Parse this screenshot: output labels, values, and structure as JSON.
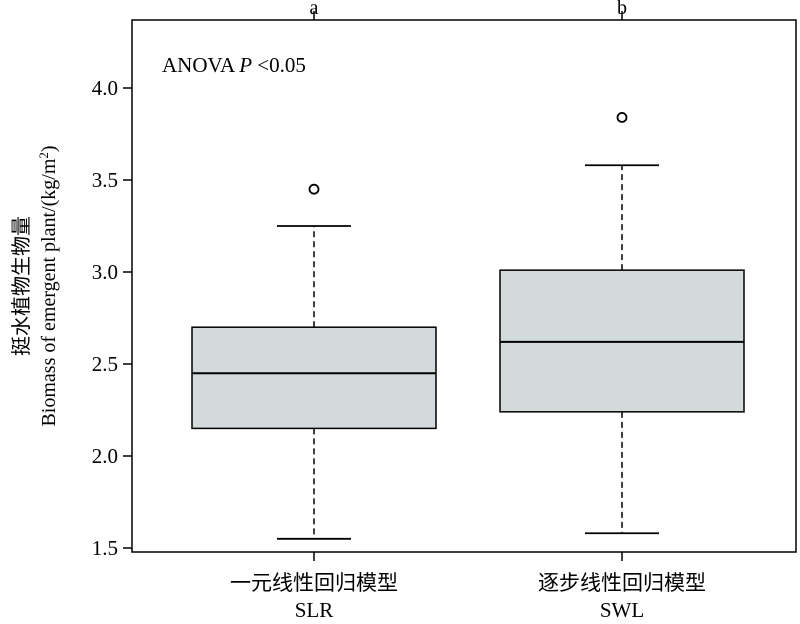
{
  "chart_data": {
    "type": "box",
    "annotation": {
      "prefix": "ANOVA ",
      "p_label": "P",
      "suffix": " <0.05"
    },
    "ylabel_cn": "挺水植物生物量",
    "ylabel_en": "Biomass of emergent plant/(kg/m",
    "ylabel_sup": "2",
    "ylabel_close": ")",
    "ylim": [
      1.5,
      4.3
    ],
    "yticks": [
      {
        "value": 1.5,
        "label": "1.5"
      },
      {
        "value": 2.0,
        "label": "2.0"
      },
      {
        "value": 2.5,
        "label": "2.5"
      },
      {
        "value": 3.0,
        "label": "3.0"
      },
      {
        "value": 3.5,
        "label": "3.5"
      },
      {
        "value": 4.0,
        "label": "4.0"
      }
    ],
    "groups": [
      {
        "label_cn": "一元线性回归模型",
        "label_en": "SLR",
        "significance": "a",
        "whisker_low": 1.55,
        "q1": 2.15,
        "median": 2.45,
        "q3": 2.7,
        "whisker_high": 3.25,
        "outliers": [
          3.45
        ]
      },
      {
        "label_cn": "逐步线性回归模型",
        "label_en": "SWL",
        "significance": "b",
        "whisker_low": 1.58,
        "q1": 2.24,
        "median": 2.62,
        "q3": 3.01,
        "whisker_high": 3.58,
        "outliers": [
          3.84
        ]
      }
    ],
    "colors": {
      "box_fill": "#d3dadb",
      "stroke": "#000000"
    }
  }
}
